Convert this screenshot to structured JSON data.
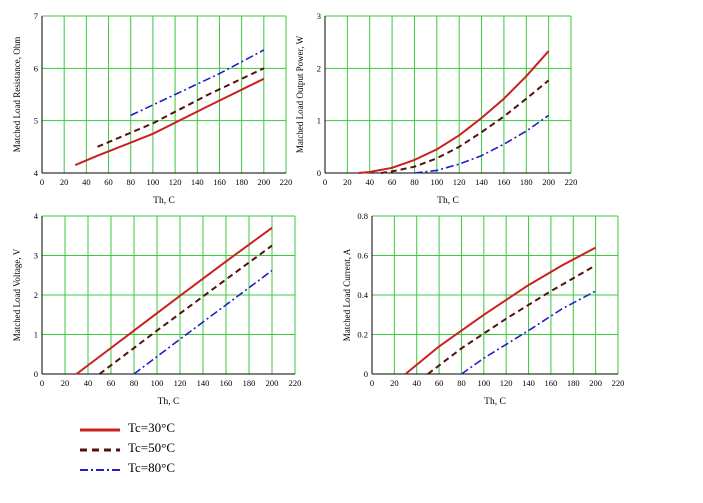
{
  "legend": [
    {
      "label": "Tc=30°C",
      "color": "#cc1f1f",
      "dash": "solid"
    },
    {
      "label": "Tc=50°C",
      "color": "#5a0f0f",
      "dash": "dash"
    },
    {
      "label": "Tc=80°C",
      "color": "#1f1fcc",
      "dash": "dashdot"
    }
  ],
  "chart_data": [
    {
      "type": "line",
      "title": "",
      "xlabel": "Th, C",
      "ylabel": "Matched Load Resistance, Ohm",
      "xlim": [
        0,
        220
      ],
      "ylim": [
        4,
        7
      ],
      "xticks": [
        0,
        20,
        40,
        60,
        80,
        100,
        120,
        140,
        160,
        180,
        200,
        220
      ],
      "yticks": [
        4,
        5,
        6,
        7
      ],
      "grid": true,
      "series": [
        {
          "name": "Tc=30°C",
          "x": [
            30,
            50,
            100,
            150,
            200
          ],
          "y": [
            4.15,
            4.33,
            4.75,
            5.28,
            5.8
          ]
        },
        {
          "name": "Tc=50°C",
          "x": [
            50,
            100,
            150,
            200
          ],
          "y": [
            4.5,
            4.95,
            5.5,
            6.0
          ]
        },
        {
          "name": "Tc=80°C",
          "x": [
            80,
            120,
            160,
            200
          ],
          "y": [
            5.1,
            5.5,
            5.9,
            6.35
          ]
        }
      ]
    },
    {
      "type": "line",
      "title": "",
      "xlabel": "Th, C",
      "ylabel": "Matched Load Output Power, W",
      "xlim": [
        0,
        220
      ],
      "ylim": [
        0,
        3
      ],
      "xticks": [
        0,
        20,
        40,
        60,
        80,
        100,
        120,
        140,
        160,
        180,
        200,
        220
      ],
      "yticks": [
        0,
        1,
        2,
        3
      ],
      "grid": true,
      "series": [
        {
          "name": "Tc=30°C",
          "x": [
            30,
            40,
            60,
            80,
            100,
            120,
            140,
            160,
            180,
            200
          ],
          "y": [
            0,
            0.02,
            0.1,
            0.25,
            0.45,
            0.72,
            1.05,
            1.42,
            1.85,
            2.33
          ]
        },
        {
          "name": "Tc=50°C",
          "x": [
            50,
            60,
            80,
            100,
            120,
            140,
            160,
            180,
            200
          ],
          "y": [
            0,
            0.03,
            0.12,
            0.28,
            0.5,
            0.78,
            1.08,
            1.42,
            1.77
          ]
        },
        {
          "name": "Tc=80°C",
          "x": [
            80,
            100,
            120,
            140,
            160,
            180,
            200
          ],
          "y": [
            0,
            0.05,
            0.17,
            0.33,
            0.55,
            0.8,
            1.1
          ]
        }
      ]
    },
    {
      "type": "line",
      "title": "",
      "xlabel": "Th, C",
      "ylabel": "Matched Load Voltage, V",
      "xlim": [
        0,
        220
      ],
      "ylim": [
        0,
        4
      ],
      "xticks": [
        0,
        20,
        40,
        60,
        80,
        100,
        120,
        140,
        160,
        180,
        200,
        220
      ],
      "yticks": [
        0,
        1,
        2,
        3,
        4
      ],
      "grid": true,
      "series": [
        {
          "name": "Tc=30°C",
          "x": [
            30,
            80,
            120,
            160,
            200
          ],
          "y": [
            0,
            1.1,
            1.98,
            2.85,
            3.7
          ]
        },
        {
          "name": "Tc=50°C",
          "x": [
            50,
            100,
            150,
            200
          ],
          "y": [
            0,
            1.1,
            2.18,
            3.25
          ]
        },
        {
          "name": "Tc=80°C",
          "x": [
            80,
            120,
            160,
            200
          ],
          "y": [
            0,
            0.88,
            1.75,
            2.62
          ]
        }
      ]
    },
    {
      "type": "line",
      "title": "",
      "xlabel": "Th, C",
      "ylabel": "Matched Load Current, A",
      "xlim": [
        0,
        220
      ],
      "ylim": [
        0,
        0.8
      ],
      "xticks": [
        0,
        20,
        40,
        60,
        80,
        100,
        120,
        140,
        160,
        180,
        200,
        220
      ],
      "yticks": [
        0,
        0.2,
        0.4,
        0.6,
        0.8
      ],
      "grid": true,
      "series": [
        {
          "name": "Tc=30°C",
          "x": [
            30,
            60,
            100,
            140,
            170,
            200
          ],
          "y": [
            0,
            0.14,
            0.3,
            0.45,
            0.55,
            0.64
          ]
        },
        {
          "name": "Tc=50°C",
          "x": [
            50,
            80,
            120,
            160,
            200
          ],
          "y": [
            0,
            0.13,
            0.28,
            0.42,
            0.55
          ]
        },
        {
          "name": "Tc=80°C",
          "x": [
            80,
            100,
            140,
            170,
            200
          ],
          "y": [
            0,
            0.08,
            0.22,
            0.33,
            0.42
          ]
        }
      ]
    }
  ]
}
